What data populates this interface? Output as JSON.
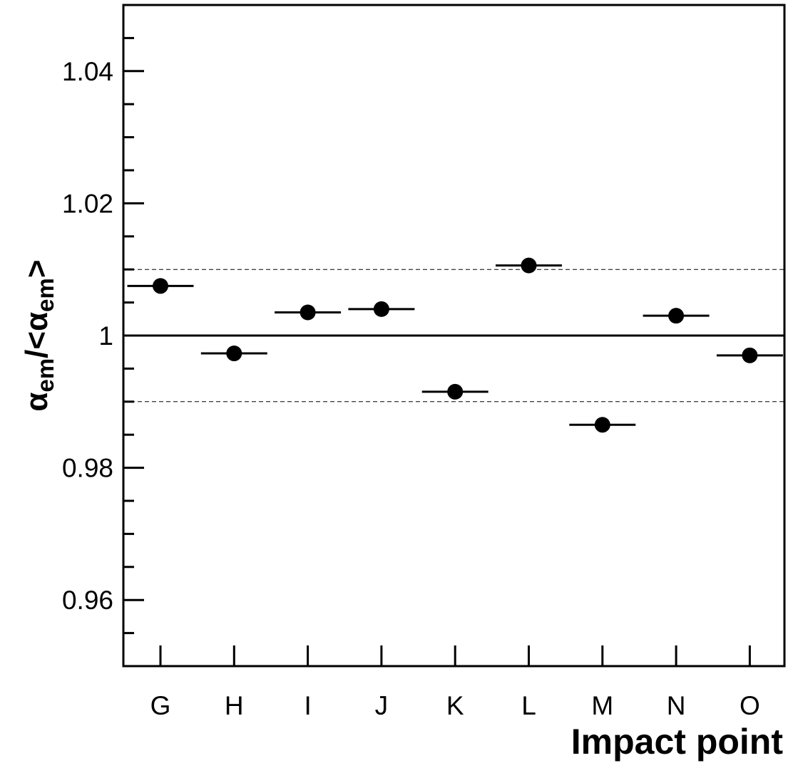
{
  "chart_data": {
    "type": "scatter",
    "xlabel": "Impact point",
    "ylabel": {
      "symbol": "α",
      "subscript": "em",
      "slash": "/<",
      "close": ">"
    },
    "categories": [
      "G",
      "H",
      "I",
      "J",
      "K",
      "L",
      "M",
      "N",
      "O"
    ],
    "series": [
      {
        "values": [
          1.0075,
          0.9973,
          1.0035,
          1.004,
          0.9915,
          1.0106,
          0.9865,
          1.003,
          0.997
        ],
        "marker": "filled-circle",
        "x_error": 0.45,
        "color": "#000000"
      }
    ],
    "ylim": [
      0.95,
      1.05
    ],
    "yticks": {
      "major": [
        0.96,
        0.98,
        1.0,
        1.02,
        1.04
      ],
      "major_labels": [
        "0.96",
        "0.98",
        "1",
        "1.02",
        "1.04"
      ],
      "minor_step": 0.005
    },
    "reference_lines": [
      {
        "y": 1.0,
        "style": "solid"
      },
      {
        "y": 1.01,
        "style": "dashed"
      },
      {
        "y": 0.99,
        "style": "dashed"
      }
    ],
    "grid": false,
    "legend": false
  }
}
